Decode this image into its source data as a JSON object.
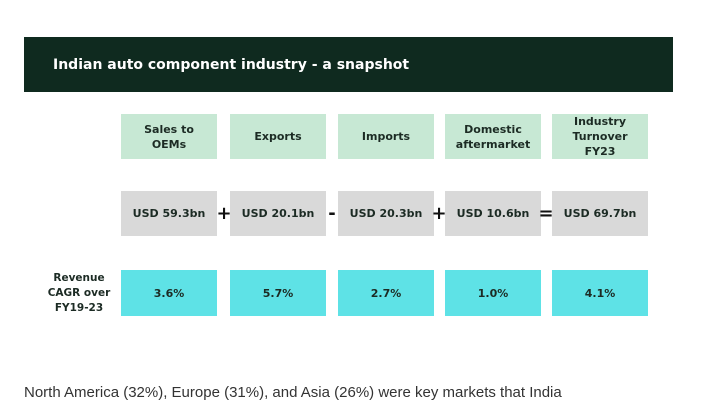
{
  "banner": {
    "title": "Indian auto component industry - a snapshot"
  },
  "columns": [
    {
      "header": "Sales to OEMs",
      "value": "USD 59.3bn",
      "cagr": "3.6%"
    },
    {
      "header": "Exports",
      "value": "USD 20.1bn",
      "cagr": "5.7%"
    },
    {
      "header": "Imports",
      "value": "USD 20.3bn",
      "cagr": "2.7%"
    },
    {
      "header": "Domestic aftermarket",
      "value": "USD 10.6bn",
      "cagr": "1.0%"
    },
    {
      "header": "Industry Turnover FY23",
      "value": "USD 69.7bn",
      "cagr": "4.1%"
    }
  ],
  "operators": [
    "+",
    "-",
    "+",
    "="
  ],
  "row_label": "Revenue CAGR over FY19-23",
  "paragraph": "North America (32%), Europe (31%), and Asia (26%) were key markets that India",
  "colors": {
    "banner": "#0f2a1f",
    "header_cells": "#c7e8d4",
    "value_cells": "#d9d9d9",
    "cagr_cells": "#5ee2e6"
  }
}
